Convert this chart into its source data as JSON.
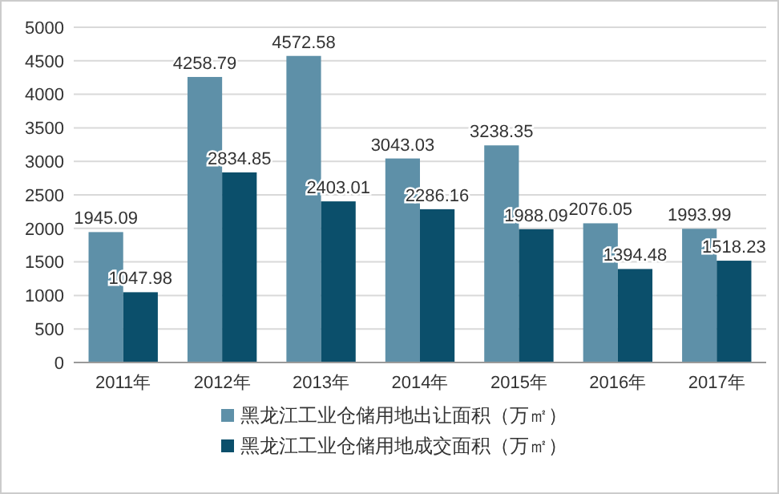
{
  "chart_data": {
    "type": "bar",
    "categories": [
      "2011年",
      "2012年",
      "2013年",
      "2014年",
      "2015年",
      "2016年",
      "2017年"
    ],
    "series": [
      {
        "name": "黑龙江工业仓储用地出让面积（万㎡）",
        "color": "#5e90a8",
        "values": [
          1945.09,
          4258.79,
          4572.58,
          3043.03,
          3238.35,
          2076.05,
          1993.99
        ]
      },
      {
        "name": "黑龙江工业仓储用地成交面积（万㎡）",
        "color": "#0b4f6b",
        "values": [
          1047.98,
          2834.85,
          2403.01,
          2286.16,
          1988.09,
          1394.48,
          1518.23
        ]
      }
    ],
    "ylim": [
      0,
      5000
    ],
    "yticks": [
      0,
      500,
      1000,
      1500,
      2000,
      2500,
      3000,
      3500,
      4000,
      4500,
      5000
    ],
    "grid": "y",
    "legend": "bottom",
    "data_labels": true
  }
}
